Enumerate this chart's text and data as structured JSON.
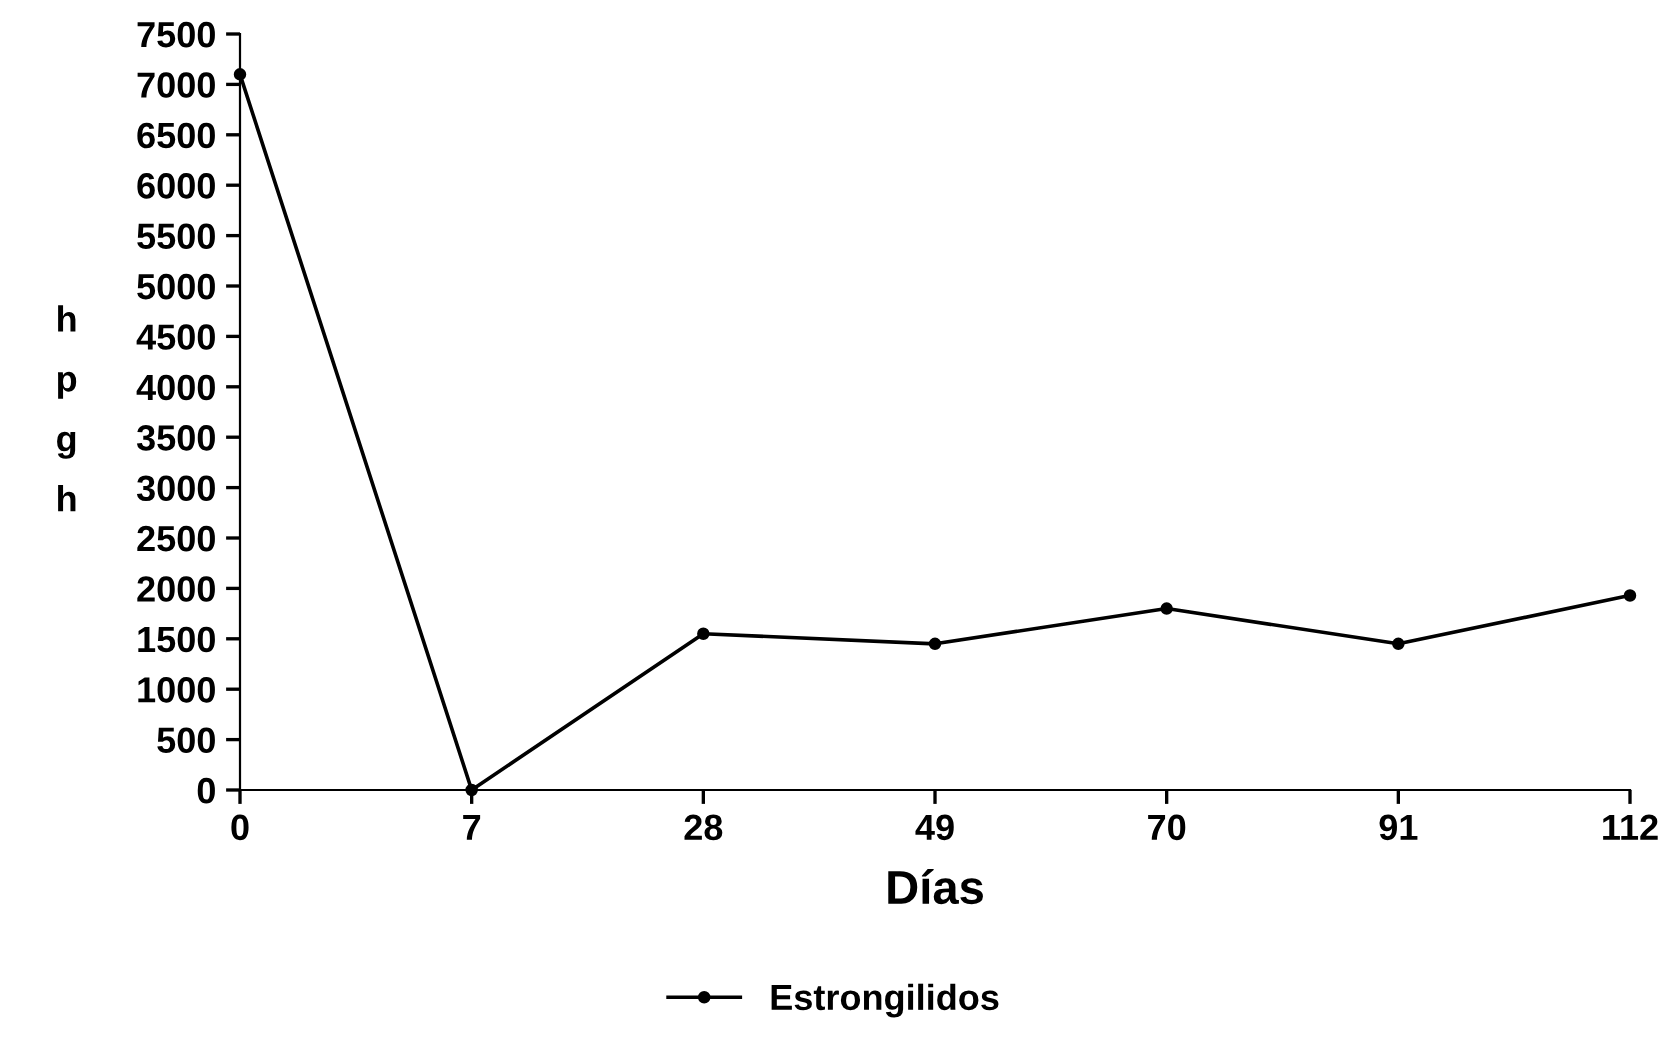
{
  "chart_data": {
    "type": "line",
    "xlabel": "Días",
    "ylabel": "hpgh",
    "categories": [
      "0",
      "7",
      "28",
      "49",
      "70",
      "91",
      "112"
    ],
    "series": [
      {
        "name": "Estrongilidos",
        "color": "#000000",
        "values": [
          7100,
          0,
          1550,
          1450,
          1800,
          1450,
          1930
        ]
      }
    ],
    "ylim": [
      0,
      7500
    ],
    "yticks": [
      0,
      500,
      1000,
      1500,
      2000,
      2500,
      3000,
      3500,
      4000,
      4500,
      5000,
      5500,
      6000,
      6500,
      7000,
      7500
    ],
    "grid": false,
    "legend": "bottom",
    "marker": "circle",
    "line_style": "solid"
  }
}
